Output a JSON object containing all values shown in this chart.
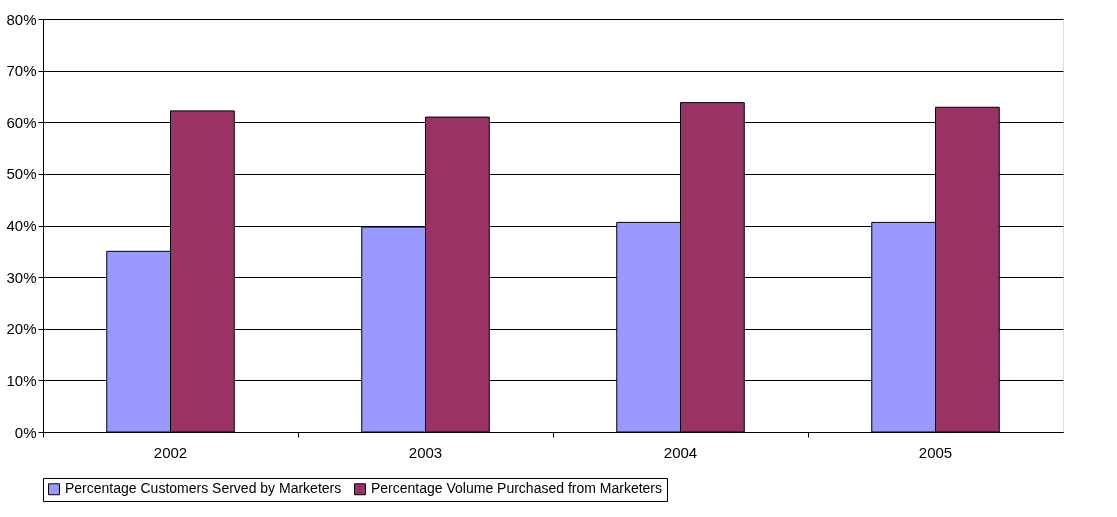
{
  "chart_data": {
    "type": "bar",
    "categories": [
      "2002",
      "2003",
      "2004",
      "2005"
    ],
    "series": [
      {
        "name": "Percentage Customers Served by Marketers",
        "color": "#9999ff",
        "values": [
          35.0,
          39.7,
          40.6,
          40.6
        ]
      },
      {
        "name": "Percentage Volume Purchased from Marketers",
        "color": "#993366",
        "values": [
          62.2,
          61.0,
          63.8,
          62.9
        ]
      }
    ],
    "ylim": [
      0,
      80
    ],
    "yticks": [
      {
        "value": 0,
        "label": "0%"
      },
      {
        "value": 10,
        "label": "10%"
      },
      {
        "value": 20,
        "label": "20%"
      },
      {
        "value": 30,
        "label": "30%"
      },
      {
        "value": 40,
        "label": "40%"
      },
      {
        "value": 50,
        "label": "50%"
      },
      {
        "value": 60,
        "label": "60%"
      },
      {
        "value": 70,
        "label": "70%"
      },
      {
        "value": 80,
        "label": "80%"
      }
    ],
    "grid": "y",
    "legend": "bottom"
  }
}
